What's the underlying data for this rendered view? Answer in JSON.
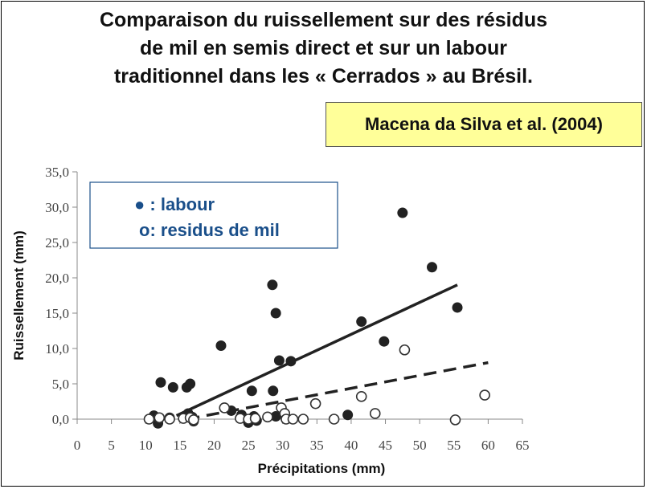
{
  "title_lines": [
    "Comparaison du ruissellement sur des résidus",
    "de mil en semis direct et sur un labour",
    "traditionnel dans les «  Cerrados » au Brésil."
  ],
  "citation": "Macena da Silva et al. (2004)",
  "chart_data": {
    "type": "scatter",
    "xlabel": "Précipitations  (mm)",
    "ylabel": "Ruissellement (mm)",
    "xlim": [
      0,
      65
    ],
    "ylim": [
      0,
      35
    ],
    "x_ticks": [
      0,
      5,
      10,
      15,
      20,
      25,
      30,
      35,
      40,
      45,
      50,
      55,
      60,
      65
    ],
    "y_ticks": [
      "0,0",
      "5,0",
      "10,0",
      "15,0",
      "20,0",
      "25,0",
      "30,0",
      "35,0"
    ],
    "legend": {
      "labour": "● : labour",
      "residus": "o: residus de mil",
      "color": "#1a4f8a"
    },
    "series": [
      {
        "name": "labour",
        "marker": "filled",
        "points": [
          [
            11.2,
            0.5
          ],
          [
            11.8,
            -0.6
          ],
          [
            12.2,
            5.2
          ],
          [
            13.5,
            0.2
          ],
          [
            14,
            4.5
          ],
          [
            16,
            4.5
          ],
          [
            16.5,
            5.0
          ],
          [
            16.2,
            0.8
          ],
          [
            16.8,
            0.3
          ],
          [
            17,
            -0.3
          ],
          [
            21,
            10.4
          ],
          [
            22.5,
            1.2
          ],
          [
            24,
            0.6
          ],
          [
            25,
            -0.5
          ],
          [
            25.5,
            4.0
          ],
          [
            25.8,
            0.4
          ],
          [
            26.2,
            -0.2
          ],
          [
            28.5,
            19.0
          ],
          [
            29,
            15.0
          ],
          [
            29.5,
            8.3
          ],
          [
            28.6,
            4.0
          ],
          [
            29,
            0.4
          ],
          [
            31.2,
            8.2
          ],
          [
            30.2,
            0.8
          ],
          [
            39.5,
            0.6
          ],
          [
            41.5,
            13.8
          ],
          [
            44.8,
            11.0
          ],
          [
            47.5,
            29.2
          ],
          [
            51.8,
            21.5
          ],
          [
            55.5,
            15.8
          ]
        ],
        "trendline": {
          "style": "solid",
          "from": [
            14.5,
            0.5
          ],
          "to": [
            55.5,
            19.0
          ]
        }
      },
      {
        "name": "residus de mil",
        "marker": "hollow",
        "points": [
          [
            10.5,
            0.0
          ],
          [
            12,
            0.2
          ],
          [
            13.5,
            0.0
          ],
          [
            15.5,
            0.1
          ],
          [
            16.5,
            0.2
          ],
          [
            17,
            -0.1
          ],
          [
            21.5,
            1.6
          ],
          [
            23.8,
            0.1
          ],
          [
            25,
            0.0
          ],
          [
            26,
            0.1
          ],
          [
            27.8,
            0.3
          ],
          [
            29.8,
            1.6
          ],
          [
            30.3,
            0.8
          ],
          [
            30.5,
            0.0
          ],
          [
            31.5,
            0.0
          ],
          [
            33,
            0.0
          ],
          [
            34.8,
            2.2
          ],
          [
            37.5,
            0.0
          ],
          [
            41.5,
            3.2
          ],
          [
            43.5,
            0.8
          ],
          [
            47.8,
            9.8
          ],
          [
            55.2,
            -0.1
          ],
          [
            59.5,
            3.4
          ]
        ],
        "trendline": {
          "style": "dashed",
          "from": [
            16,
            0.0
          ],
          "to": [
            60,
            8.0
          ]
        }
      }
    ]
  }
}
